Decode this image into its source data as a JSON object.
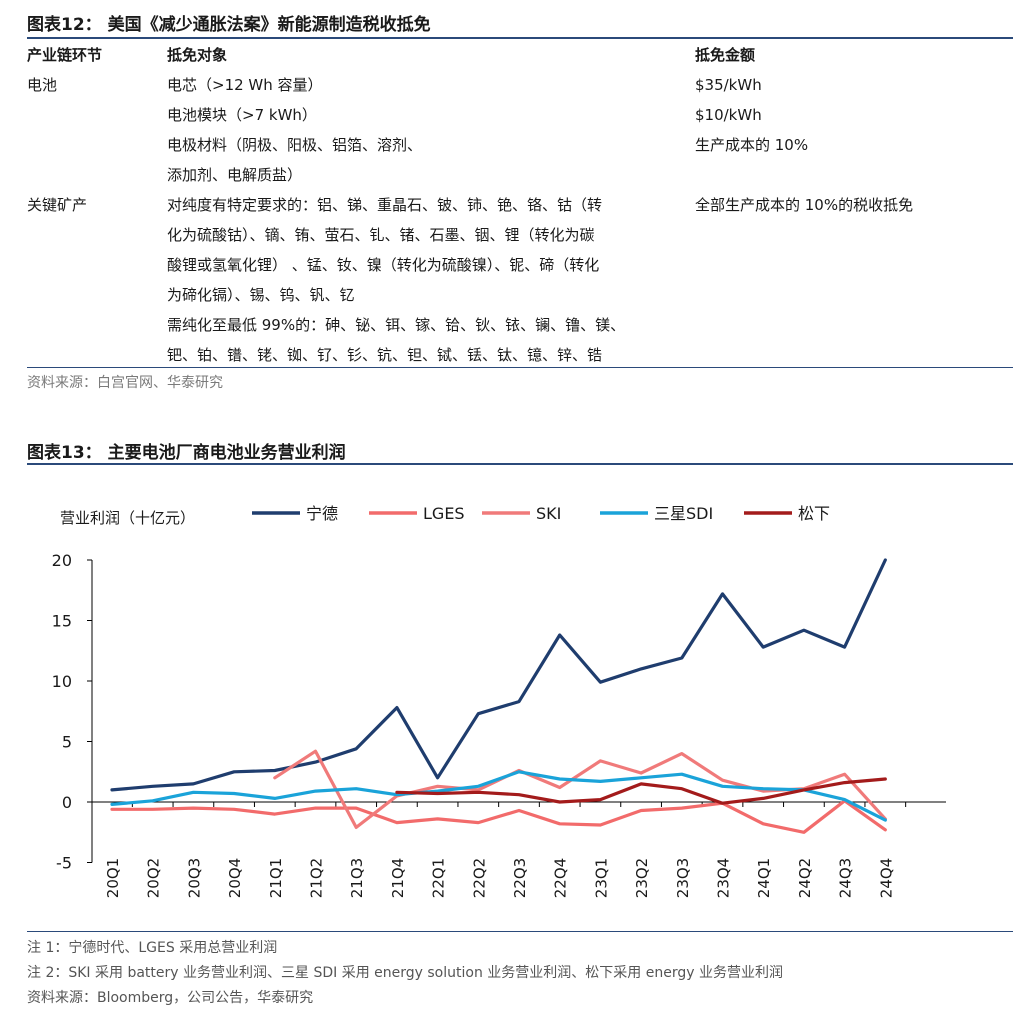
{
  "table_figure": {
    "title": "图表12： 美国《减少通胀法案》新能源制造税收抵免",
    "headers": [
      "产业链环节",
      "抵免对象",
      "抵免金额"
    ],
    "rows": [
      {
        "stage": "电池",
        "object": "电芯（>12 Wh 容量）",
        "amount": "$35/kWh"
      },
      {
        "stage": "",
        "object": "电池模块（>7 kWh）",
        "amount": "$10/kWh"
      },
      {
        "stage": "",
        "object": "电极材料（阴极、阳极、铝箔、溶剂、",
        "amount": "生产成本的 10%"
      },
      {
        "stage": "",
        "object": "添加剂、电解质盐）",
        "amount": ""
      },
      {
        "stage": "关键矿产",
        "object": "对纯度有特定要求的：铝、锑、重晶石、铍、铈、铯、铬、钴（转",
        "amount": "全部生产成本的 10%的税收抵免"
      },
      {
        "stage": "",
        "object": "化为硫酸钴）、镝、铕、萤石、钆、锗、石墨、铟、锂（转化为碳",
        "amount": ""
      },
      {
        "stage": "",
        "object": "酸锂或氢氧化锂） 、锰、钕、镍（转化为硫酸镍）、铌、碲（转化",
        "amount": ""
      },
      {
        "stage": "",
        "object": "为碲化镉）、锡、钨、钒、钇",
        "amount": ""
      },
      {
        "stage": "",
        "object": "需纯化至最低 99%的：砷、铋、铒、镓、铪、钬、铱、镧、镥、镁、",
        "amount": ""
      },
      {
        "stage": "",
        "object": "钯、铂、镨、铑、铷、钌、钐、钪、钽、铽、铥、钛、镱、锌、锆",
        "amount": ""
      }
    ],
    "source": "资料来源：白宫官网、华泰研究"
  },
  "chart_figure": {
    "title": "图表13： 主要电池厂商电池业务营业利润",
    "notes": [
      "注 1：宁德时代、LGES 采用总营业利润",
      "注 2：SKI 采用 battery 业务营业利润、三星 SDI 采用 energy solution 业务营业利润、松下采用 energy 业务营业利润",
      "资料来源：Bloomberg，公司公告，华泰研究"
    ]
  },
  "chart_data": {
    "type": "line",
    "ylabel": "营业利润（十亿元）",
    "ylim": [
      -5,
      20
    ],
    "yticks": [
      -5,
      0,
      5,
      10,
      15,
      20
    ],
    "grid": false,
    "legend_position": "top",
    "categories": [
      "20Q1",
      "20Q2",
      "20Q3",
      "20Q4",
      "21Q1",
      "21Q2",
      "21Q3",
      "21Q4",
      "22Q1",
      "22Q2",
      "22Q3",
      "22Q4",
      "23Q1",
      "23Q2",
      "23Q3",
      "23Q4",
      "24Q1",
      "24Q2",
      "24Q3",
      "24Q4"
    ],
    "series": [
      {
        "name": "宁德",
        "color": "#1f3d6e",
        "values": [
          1.0,
          1.3,
          1.5,
          2.5,
          2.6,
          3.3,
          4.4,
          7.8,
          2.0,
          7.3,
          8.3,
          13.8,
          9.9,
          11.0,
          11.9,
          17.2,
          12.8,
          14.2,
          12.8,
          20.0
        ]
      },
      {
        "name": "LGES",
        "color": "#f26b6b",
        "values": [
          -0.6,
          -0.6,
          -0.5,
          -0.6,
          -1.0,
          -0.5,
          -0.5,
          -1.7,
          -1.4,
          -1.7,
          -0.7,
          -1.8,
          -1.9,
          -0.7,
          -0.5,
          -0.1,
          -1.8,
          -2.5,
          0.1,
          -2.3
        ]
      },
      {
        "name": "SKI",
        "color": "#f07a7a",
        "values": [
          null,
          null,
          null,
          null,
          2.0,
          4.2,
          -2.1,
          0.5,
          1.3,
          1.0,
          2.6,
          1.2,
          3.4,
          2.4,
          4.0,
          1.8,
          0.9,
          1.1,
          2.3,
          -1.4
        ]
      },
      {
        "name": "三星SDI",
        "color": "#1aa3d9",
        "values": [
          -0.2,
          0.1,
          0.8,
          0.7,
          0.3,
          0.9,
          1.1,
          0.6,
          0.9,
          1.3,
          2.5,
          1.9,
          1.7,
          2.0,
          2.3,
          1.3,
          1.1,
          1.0,
          0.2,
          -1.5
        ]
      },
      {
        "name": "松下",
        "color": "#a31b1b",
        "values": [
          null,
          null,
          null,
          null,
          null,
          null,
          null,
          0.8,
          0.7,
          0.8,
          0.6,
          0.0,
          0.2,
          1.5,
          1.1,
          -0.1,
          0.3,
          1.0,
          1.6,
          1.9
        ]
      }
    ]
  }
}
